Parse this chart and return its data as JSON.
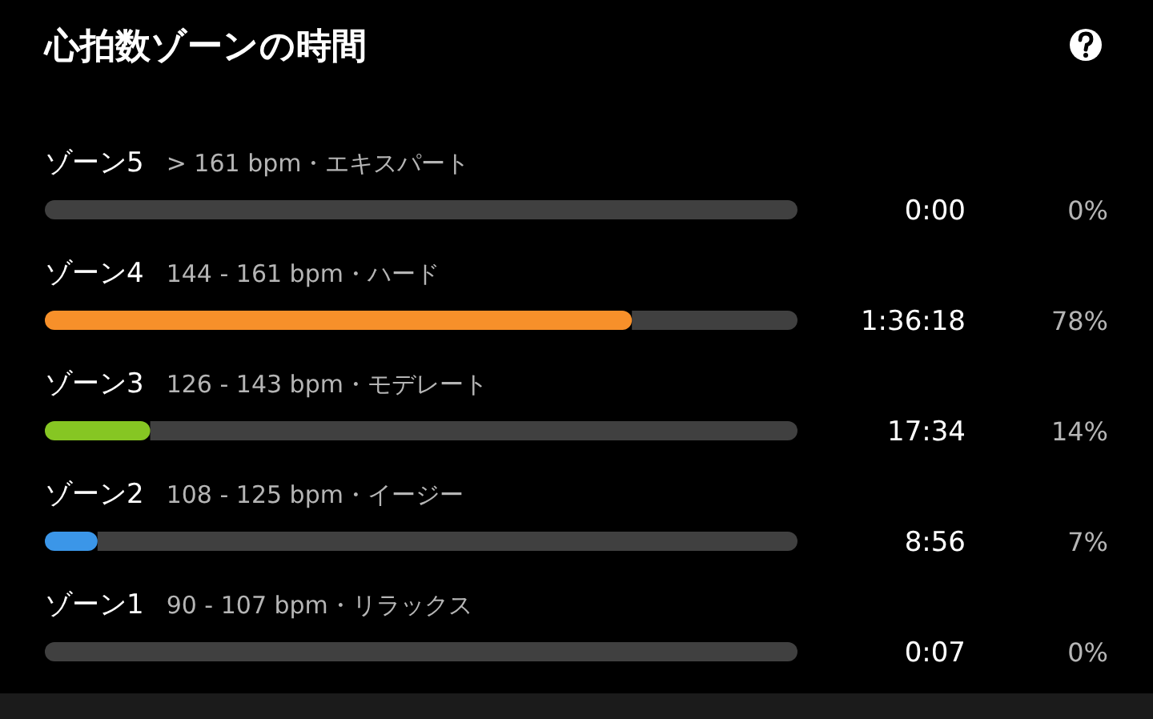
{
  "chart_data": {
    "type": "bar",
    "orientation": "horizontal",
    "stacked": true,
    "title": "心拍数ゾーンの時間",
    "categories": [
      "ゾーン5",
      "ゾーン4",
      "ゾーン3",
      "ゾーン2",
      "ゾーン1"
    ],
    "series": [
      {
        "values": [
          0,
          78,
          14,
          7,
          0
        ],
        "colors": [
          "#f7902a",
          "#f7902a",
          "#86c623",
          "#3b96e8",
          "#3b96e8"
        ],
        "value_labels": [
          "0%",
          "78%",
          "14%",
          "7%",
          "0%"
        ]
      },
      {
        "values": [
          100,
          22,
          86,
          93,
          100
        ],
        "color": "#404040"
      }
    ],
    "xlim": [
      0,
      100
    ],
    "annotations": [
      "> 161 bpm・エキスパート",
      "144 - 161 bpm・ハード",
      "126 - 143 bpm・モデレート",
      "108 - 125 bpm・イージー",
      "90 - 107 bpm・リラックス",
      "0:00",
      "1:36:18",
      "17:34",
      "8:56",
      "0:07"
    ]
  }
}
